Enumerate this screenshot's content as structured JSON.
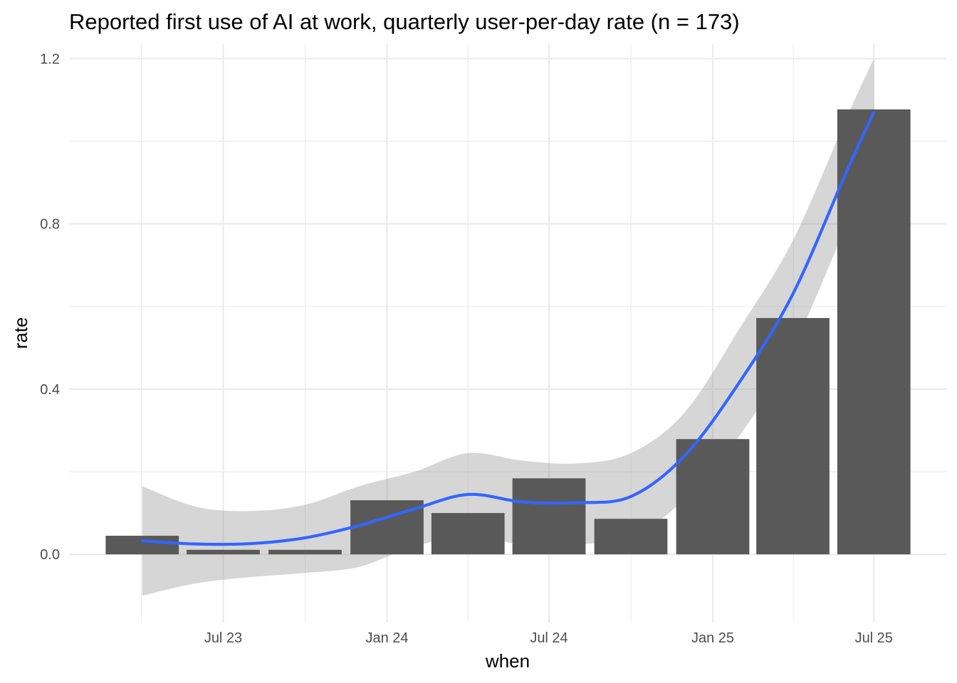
{
  "chart_data": {
    "type": "bar",
    "title": "Reported first use of AI at work, quarterly user-per-day rate (n = 173)",
    "xlabel": "when",
    "ylabel": "rate",
    "ylim": [
      -0.165,
      1.235
    ],
    "y_ticks": [
      0.0,
      0.4,
      0.8,
      1.2
    ],
    "y_tick_labels": [
      "0.0",
      "0.4",
      "0.8",
      "1.2"
    ],
    "x_ticks": [
      "2023-07-01",
      "2024-01-01",
      "2024-07-01",
      "2025-01-01",
      "2025-07-01"
    ],
    "x_tick_labels": [
      "Jul 23",
      "Jan 24",
      "Jul 24",
      "Jan 25",
      "Jul 25"
    ],
    "grid": true,
    "colors": {
      "bar": "#595959",
      "smooth": "#3366FF",
      "band": "#999999",
      "grid": "#ebebeb"
    },
    "categories": [
      "2023-04-01",
      "2023-07-01",
      "2023-10-01",
      "2024-01-01",
      "2024-04-01",
      "2024-07-01",
      "2024-10-01",
      "2025-01-01",
      "2025-04-01",
      "2025-07-01"
    ],
    "values": [
      0.045,
      0.011,
      0.011,
      0.131,
      0.1,
      0.184,
      0.086,
      0.279,
      0.572,
      1.077
    ],
    "smooth": {
      "x": [
        "2023-04-01",
        "2023-06-01",
        "2023-08-01",
        "2023-10-01",
        "2023-12-01",
        "2024-02-01",
        "2024-04-01",
        "2024-06-01",
        "2024-08-01",
        "2024-10-01",
        "2024-12-01",
        "2025-02-01",
        "2025-04-01",
        "2025-06-01",
        "2025-07-01"
      ],
      "y": [
        0.033,
        0.025,
        0.026,
        0.04,
        0.07,
        0.11,
        0.145,
        0.127,
        0.125,
        0.14,
        0.24,
        0.42,
        0.63,
        0.93,
        1.07
      ],
      "lower": [
        -0.1,
        -0.07,
        -0.055,
        -0.045,
        -0.03,
        0.02,
        0.04,
        0.025,
        0.025,
        0.04,
        0.135,
        0.29,
        0.5,
        0.8,
        0.935
      ],
      "upper": [
        0.165,
        0.115,
        0.105,
        0.12,
        0.165,
        0.2,
        0.245,
        0.227,
        0.22,
        0.245,
        0.345,
        0.55,
        0.76,
        1.06,
        1.2
      ]
    }
  }
}
